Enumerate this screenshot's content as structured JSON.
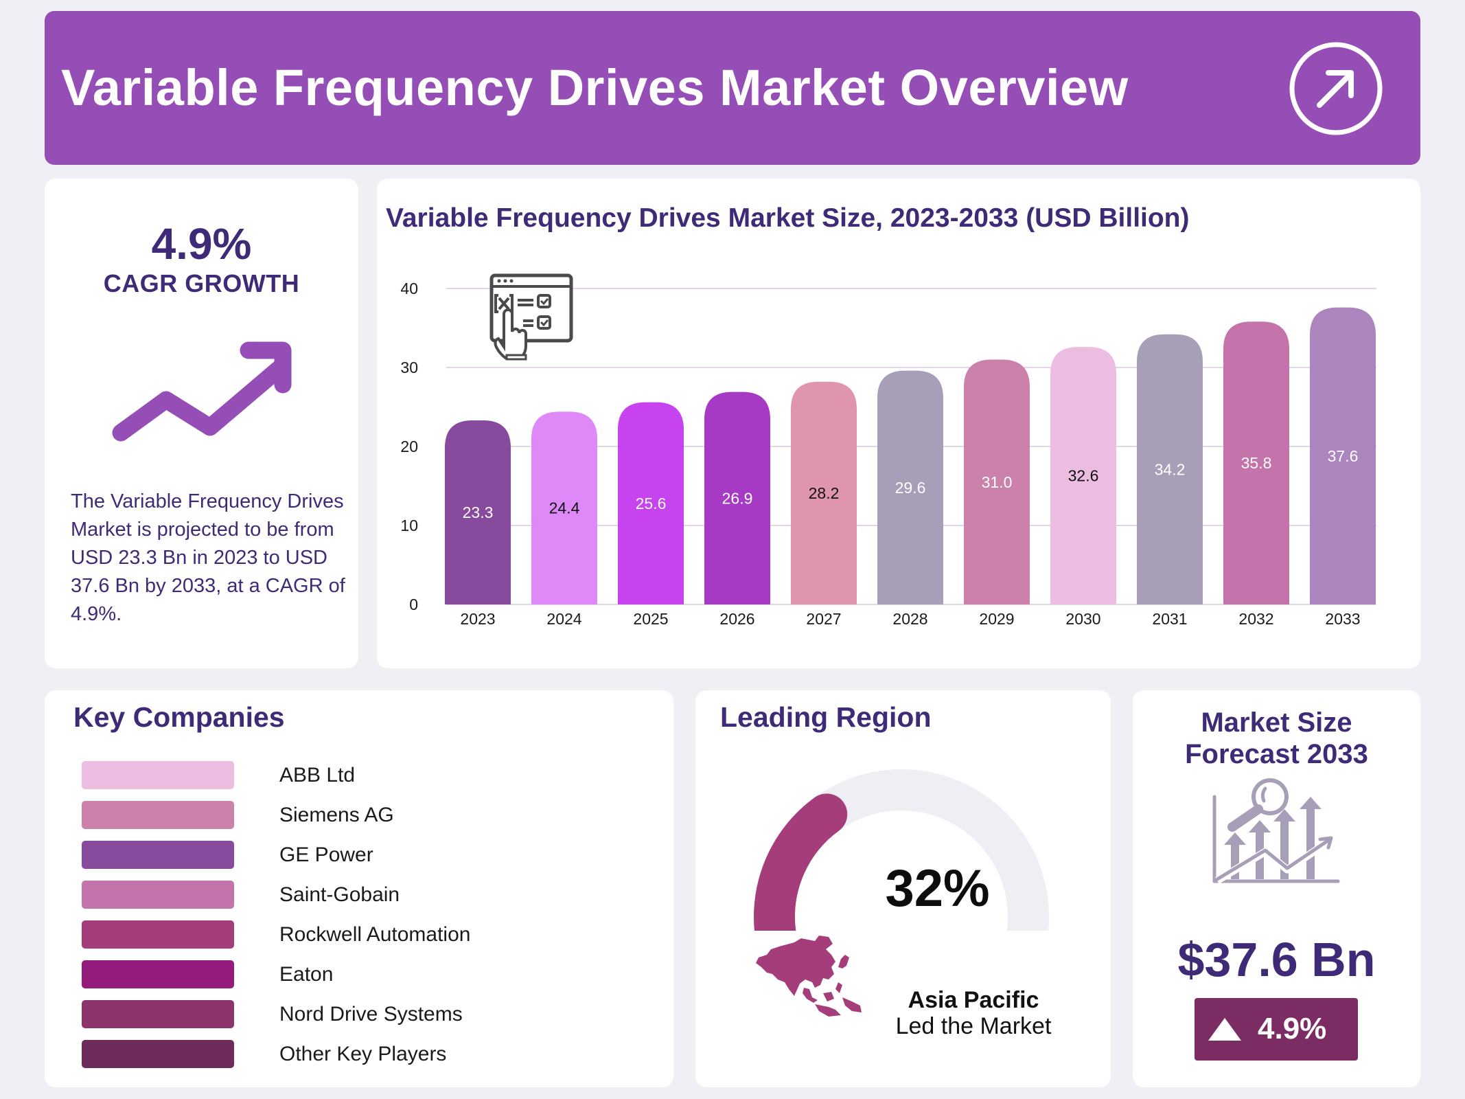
{
  "header": {
    "title": "Variable Frequency Drives Market Overview",
    "icon": "arrow-up-right-circle-icon"
  },
  "cagr_panel": {
    "value": "4.9%",
    "label": "CAGR GROWTH",
    "icon": "trend-up-arrow-icon",
    "description": "The Variable Frequency Drives Market is projected to be from USD 23.3 Bn in 2023 to USD 37.6 Bn by 2033, at a CAGR of 4.9%.",
    "accent_color": "#954eb5"
  },
  "chart_data": {
    "type": "bar",
    "title": "Variable Frequency Drives Market Size, 2023-2033 (USD Billion)",
    "xlabel": "",
    "ylabel": "",
    "ylim": [
      0,
      40
    ],
    "yticks": [
      0,
      10,
      20,
      30,
      40
    ],
    "grid": true,
    "legend": "none",
    "categories": [
      "2023",
      "2024",
      "2025",
      "2026",
      "2027",
      "2028",
      "2029",
      "2030",
      "2031",
      "2032",
      "2033"
    ],
    "values": [
      23.3,
      24.4,
      25.6,
      26.9,
      28.2,
      29.6,
      31.0,
      32.6,
      34.2,
      35.8,
      37.6
    ],
    "value_labels": [
      "23.3",
      "24.4",
      "25.6",
      "26.9",
      "28.2",
      "29.6",
      "31.0",
      "32.6",
      "34.2",
      "35.8",
      "37.6"
    ],
    "bar_colors": [
      "#874a9c",
      "#df88f7",
      "#c843f0",
      "#a63ac5",
      "#de95ad",
      "#a89eb7",
      "#cb81aa",
      "#ecbde0",
      "#a89eb7",
      "#c474aa",
      "#ac84be"
    ],
    "label_colors": [
      "#ffffff",
      "#111111",
      "#ffffff",
      "#ffffff",
      "#111111",
      "#ffffff",
      "#ffffff",
      "#111111",
      "#ffffff",
      "#ffffff",
      "#ffffff"
    ],
    "decoration_icon": "checklist-form-pointer-icon"
  },
  "companies": {
    "title": "Key Companies",
    "items": [
      {
        "name": "ABB Ltd",
        "color": "#ecbde0"
      },
      {
        "name": "Siemens AG",
        "color": "#cb81aa"
      },
      {
        "name": "GE Power",
        "color": "#874a9c"
      },
      {
        "name": "Saint-Gobain",
        "color": "#c474aa"
      },
      {
        "name": "Rockwell Automation",
        "color": "#a63d7b"
      },
      {
        "name": "Eaton",
        "color": "#941b7c"
      },
      {
        "name": "Nord Drive Systems",
        "color": "#8e346d"
      },
      {
        "name": "Other Key Players",
        "color": "#6e2c5c"
      }
    ]
  },
  "region": {
    "title": "Leading Region",
    "share_percent": 32,
    "share_label": "32%",
    "gauge_color": "#a63d7b",
    "track_color": "#efeef4",
    "region_name": "Asia Pacific",
    "region_sub": "Led the Market",
    "map_icon": "asia-pacific-map-icon"
  },
  "forecast": {
    "title_line1": "Market Size",
    "title_line2": "Forecast 2033",
    "icon": "chart-magnifier-growth-icon",
    "value": "$37.6 Bn",
    "badge_icon": "triangle-up-icon",
    "badge_value": "4.9%",
    "badge_color": "#7b2c63"
  }
}
